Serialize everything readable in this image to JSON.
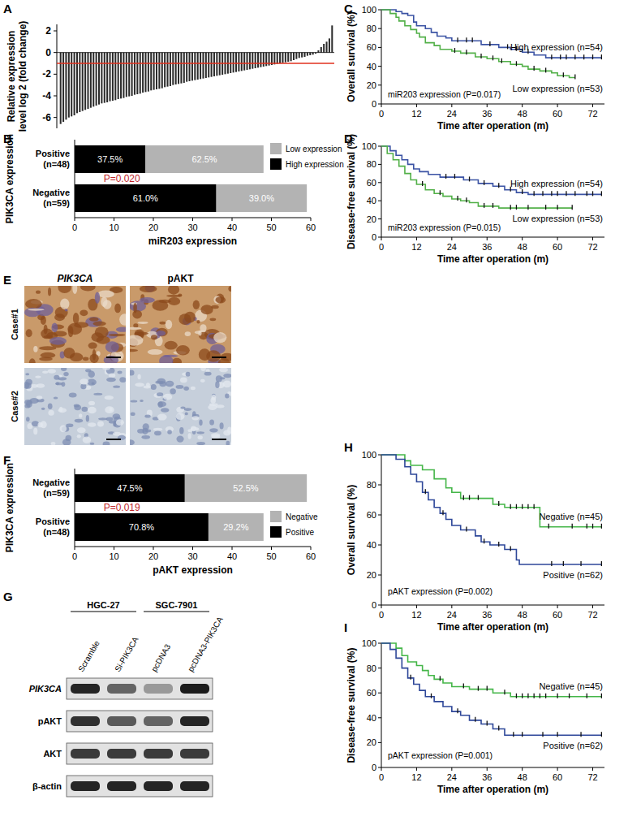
{
  "chart_data": [
    {
      "panel": "A",
      "type": "bar",
      "y_label": [
        "Relative expression",
        "level log 2 (fold change)"
      ],
      "values": [
        -6.6,
        -6.4,
        -6.2,
        -6.0,
        -5.9,
        -5.8,
        -5.6,
        -5.5,
        -5.4,
        -5.3,
        -5.2,
        -5.1,
        -5.0,
        -4.9,
        -4.8,
        -4.7,
        -4.65,
        -4.6,
        -4.5,
        -4.45,
        -4.4,
        -4.3,
        -4.25,
        -4.2,
        -4.1,
        -4.05,
        -4.0,
        -3.9,
        -3.85,
        -3.8,
        -3.7,
        -3.65,
        -3.6,
        -3.5,
        -3.45,
        -3.4,
        -3.35,
        -3.3,
        -3.2,
        -3.15,
        -3.1,
        -3.0,
        -2.95,
        -2.9,
        -2.85,
        -2.8,
        -2.7,
        -2.65,
        -2.6,
        -2.55,
        -2.5,
        -2.45,
        -2.4,
        -2.35,
        -2.3,
        -2.25,
        -2.2,
        -2.15,
        -2.1,
        -2.05,
        -2.0,
        -1.95,
        -1.9,
        -1.85,
        -1.8,
        -1.75,
        -1.7,
        -1.65,
        -1.6,
        -1.55,
        -1.5,
        -1.45,
        -1.4,
        -1.35,
        -1.3,
        -1.25,
        -1.2,
        -1.15,
        -1.1,
        -1.05,
        -1.0,
        -0.95,
        -0.9,
        -0.85,
        -0.8,
        -0.7,
        -0.6,
        -0.5,
        -0.45,
        -0.4,
        -0.3,
        -0.25,
        -0.2,
        -0.1,
        0.2,
        0.5,
        0.8,
        1.0,
        1.3,
        2.5
      ],
      "color": "#2b2b2b",
      "ylim": [
        -7,
        2.6
      ],
      "yticks": [
        -6,
        -4,
        -2,
        0,
        2
      ],
      "tick_labels": "y",
      "threshold": -1
    },
    {
      "panel": "B",
      "type": "bar",
      "orientation": "horizontal",
      "stacked": true,
      "categories": [
        "Positive (n=48)",
        "Negative (n=59)"
      ],
      "series": [
        {
          "name": "High expression",
          "color": "#000000",
          "values": [
            18,
            36
          ],
          "percent_labels": [
            "37.5%",
            "61.0%"
          ]
        },
        {
          "name": "Low expression",
          "color": "#b3b3b3",
          "values": [
            30,
            23
          ],
          "percent_labels": [
            "62.5%",
            "39.0%"
          ]
        }
      ],
      "x_label": "miR203 expression",
      "y_label": "PIK3CA expression",
      "annotation": "P=0.020",
      "xlim": [
        0,
        60
      ],
      "xticks": [
        0,
        10,
        20,
        30,
        40,
        50,
        60
      ],
      "legend": "top-right"
    },
    {
      "panel": "C",
      "type": "step",
      "y_label": "Overall survival (%)",
      "x_label": "Time after operation (m)",
      "annotation": "miR203 expression (P=0.017)",
      "xlim": [
        0,
        76
      ],
      "xticks": [
        0,
        12,
        24,
        36,
        48,
        60,
        72
      ],
      "ylim": [
        0,
        100
      ],
      "yticks": [
        0,
        20,
        40,
        60,
        80,
        100
      ],
      "marker": "tick",
      "series": [
        {
          "name": "High expression (n=54)",
          "color": "#3b53a4",
          "x": [
            0,
            5,
            7,
            9,
            11,
            12,
            15,
            17,
            19,
            22,
            24,
            34,
            40,
            44,
            48,
            52,
            56,
            75
          ],
          "values": [
            100,
            98,
            96,
            94,
            87,
            83,
            80,
            76,
            72,
            70,
            67,
            63,
            60,
            58,
            55,
            52,
            49,
            49
          ],
          "censored": [
            26,
            29,
            31,
            37,
            43,
            46,
            50,
            58,
            61,
            63,
            66,
            69,
            72,
            75
          ]
        },
        {
          "name": "Low expression (n=53)",
          "color": "#52b048",
          "x": [
            0,
            3,
            5,
            6,
            8,
            10,
            12,
            13,
            15,
            18,
            20,
            24,
            27,
            32,
            36,
            40,
            44,
            48,
            50,
            54,
            58,
            60,
            64,
            66
          ],
          "values": [
            100,
            96,
            92,
            88,
            83,
            79,
            75,
            71,
            65,
            62,
            58,
            56,
            54,
            50,
            48,
            45,
            42,
            40,
            37,
            35,
            33,
            30,
            28,
            28
          ],
          "censored": [
            25,
            29,
            34,
            38,
            41,
            46,
            52,
            56,
            62,
            66
          ]
        }
      ]
    },
    {
      "panel": "D",
      "type": "step",
      "y_label": "Disease-free survival (%)",
      "x_label": "Time after operation (m)",
      "annotation": "miR203 expression (P=0.015)",
      "xlim": [
        0,
        76
      ],
      "xticks": [
        0,
        12,
        24,
        36,
        48,
        60,
        72
      ],
      "ylim": [
        0,
        100
      ],
      "yticks": [
        0,
        20,
        40,
        60,
        80,
        100
      ],
      "marker": "tick",
      "series": [
        {
          "name": "High expression (n=54)",
          "color": "#3b53a4",
          "x": [
            0,
            3,
            5,
            7,
            9,
            11,
            13,
            16,
            20,
            28,
            33,
            38,
            42,
            46,
            50,
            75
          ],
          "values": [
            100,
            95,
            90,
            85,
            80,
            75,
            72,
            69,
            66,
            63,
            59,
            56,
            52,
            49,
            47,
            47
          ],
          "censored": [
            22,
            25,
            30,
            35,
            40,
            44,
            48,
            52,
            55,
            58,
            60,
            63,
            66,
            70,
            72,
            75
          ]
        },
        {
          "name": "Low expression (n=53)",
          "color": "#52b048",
          "x": [
            0,
            2,
            4,
            6,
            8,
            10,
            12,
            15,
            18,
            21,
            24,
            27,
            30,
            33,
            40,
            65
          ],
          "values": [
            100,
            92,
            85,
            78,
            70,
            63,
            58,
            52,
            48,
            45,
            42,
            40,
            38,
            34,
            32,
            32
          ],
          "censored": [
            14,
            20,
            26,
            29,
            35,
            38,
            44,
            46,
            50,
            56,
            60,
            65
          ]
        }
      ]
    },
    {
      "panel": "F",
      "type": "bar",
      "orientation": "horizontal",
      "stacked": true,
      "categories": [
        "Negative (n=59)",
        "Positive (n=48)"
      ],
      "series": [
        {
          "name": "Positive",
          "color": "#000000",
          "values": [
            28,
            34
          ],
          "percent_labels": [
            "47.5%",
            "70.8%"
          ]
        },
        {
          "name": "Negative",
          "color": "#b3b3b3",
          "values": [
            31,
            14
          ],
          "percent_labels": [
            "52.5%",
            "29.2%"
          ]
        }
      ],
      "x_label": "pAKT expression",
      "y_label": "PIK3CA expression",
      "annotation": "P=0.019",
      "xlim": [
        0,
        60
      ],
      "xticks": [
        0,
        10,
        20,
        30,
        40,
        50,
        60
      ],
      "legend": "bottom-right"
    },
    {
      "panel": "H",
      "type": "step",
      "y_label": "Overall survival (%)",
      "x_label": "Time after operation (m)",
      "annotation": "pAKT expression (P=0.002)",
      "xlim": [
        0,
        76
      ],
      "xticks": [
        0,
        12,
        24,
        36,
        48,
        60,
        72
      ],
      "ylim": [
        0,
        100
      ],
      "yticks": [
        0,
        20,
        40,
        60,
        80,
        100
      ],
      "marker": "tick",
      "series": [
        {
          "name": "Negative (n=45)",
          "color": "#45b649",
          "x": [
            0,
            8,
            10,
            14,
            18,
            22,
            24,
            27,
            38,
            42,
            54,
            75
          ],
          "values": [
            100,
            96,
            93,
            90,
            84,
            78,
            75,
            71,
            67,
            65,
            52,
            52
          ],
          "censored": [
            28,
            30,
            33,
            40,
            44,
            46,
            48,
            50,
            52,
            57,
            65,
            70,
            72,
            75
          ]
        },
        {
          "name": "Positive (n=62)",
          "color": "#2e4799",
          "x": [
            0,
            5,
            8,
            10,
            12,
            14,
            16,
            18,
            20,
            22,
            24,
            27,
            32,
            34,
            37,
            42,
            46,
            47,
            75
          ],
          "values": [
            100,
            97,
            92,
            87,
            82,
            75,
            70,
            65,
            61,
            57,
            53,
            50,
            46,
            42,
            40,
            37,
            30,
            27,
            27
          ],
          "censored": [
            15,
            21,
            29,
            35,
            40,
            44,
            58,
            62,
            68,
            75
          ]
        }
      ]
    },
    {
      "panel": "I",
      "type": "step",
      "y_label": "Disease-free survival (%)",
      "x_label": "Time after operation (m)",
      "annotation": "pAKT expression (P=0.001)",
      "xlim": [
        0,
        76
      ],
      "xticks": [
        0,
        12,
        24,
        36,
        48,
        60,
        72
      ],
      "ylim": [
        0,
        100
      ],
      "yticks": [
        0,
        20,
        40,
        60,
        80,
        100
      ],
      "marker": "tick",
      "series": [
        {
          "name": "Negative (n=45)",
          "color": "#45b649",
          "x": [
            0,
            5,
            7,
            9,
            12,
            14,
            16,
            18,
            21,
            24,
            30,
            38,
            44,
            75
          ],
          "values": [
            100,
            96,
            90,
            85,
            82,
            78,
            74,
            71,
            68,
            65,
            63,
            60,
            57,
            57
          ],
          "censored": [
            20,
            28,
            33,
            36,
            42,
            46,
            48,
            50,
            52,
            54,
            56,
            60,
            64,
            70,
            75
          ]
        },
        {
          "name": "Positive (n=62)",
          "color": "#2e4799",
          "x": [
            0,
            3,
            5,
            7,
            9,
            11,
            13,
            15,
            18,
            21,
            24,
            27,
            30,
            34,
            38,
            42,
            75
          ],
          "values": [
            100,
            95,
            88,
            80,
            72,
            67,
            62,
            57,
            53,
            49,
            45,
            42,
            38,
            35,
            31,
            26,
            26
          ],
          "censored": [
            10,
            17,
            26,
            32,
            36,
            40,
            45,
            48,
            55,
            60,
            68,
            75
          ]
        }
      ]
    }
  ],
  "ihc_panel": {
    "panel": "E",
    "columns": [
      "PIK3CA",
      "pAKT"
    ],
    "rows": [
      "Case#1",
      "Case#2"
    ]
  },
  "western_blot": {
    "panel": "G",
    "groups": [
      "HGC-27",
      "SGC-7901"
    ],
    "lanes": [
      "Scramble",
      "Si-PIK3CA",
      "pcDNA3",
      "pcDNA3-PIK3CA"
    ],
    "proteins": [
      "PIK3CA",
      "pAKT",
      "AKT",
      "β-actin"
    ],
    "band_intensity": [
      [
        0.9,
        0.6,
        0.35,
        0.95
      ],
      [
        0.85,
        0.65,
        0.6,
        0.9
      ],
      [
        0.8,
        0.8,
        0.8,
        0.8
      ],
      [
        0.9,
        0.9,
        0.9,
        0.9
      ]
    ]
  }
}
